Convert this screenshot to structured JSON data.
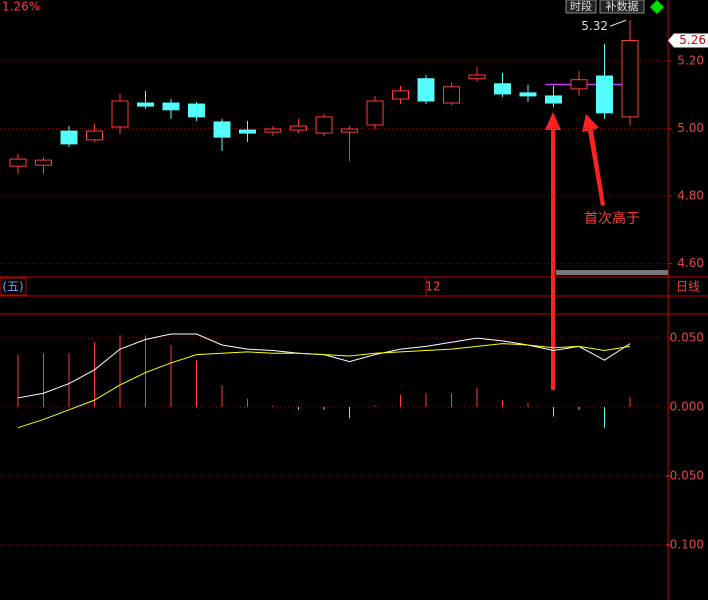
{
  "header": {
    "change": "1.26%",
    "buttons": [
      "时段",
      "补数据"
    ]
  },
  "toolbar": {
    "index": "(五)",
    "period": "日线"
  },
  "chart_data": [
    {
      "type": "candlestick",
      "categories": [
        null,
        null,
        null,
        null,
        null,
        null,
        null,
        null,
        null,
        null,
        null,
        null,
        null,
        null,
        null,
        null,
        "12",
        null,
        null,
        null,
        null,
        null,
        null,
        null,
        null
      ],
      "open": [
        4.888,
        4.891,
        4.992,
        4.966,
        5.004,
        5.075,
        5.075,
        5.072,
        5.019,
        4.995,
        4.989,
        4.995,
        4.986,
        4.989,
        5.01,
        5.087,
        5.147,
        5.075,
        5.147,
        5.132,
        5.105,
        5.096,
        5.117,
        5.155,
        5.034
      ],
      "high": [
        4.924,
        4.915,
        5.007,
        5.013,
        5.102,
        5.111,
        5.087,
        5.078,
        5.028,
        5.022,
        5.007,
        5.028,
        5.043,
        5.007,
        5.096,
        5.126,
        5.158,
        5.135,
        5.182,
        5.164,
        5.129,
        5.126,
        5.17,
        5.25,
        5.32
      ],
      "low": [
        4.865,
        4.865,
        4.945,
        4.96,
        4.983,
        5.058,
        5.028,
        5.022,
        4.933,
        4.96,
        4.977,
        4.986,
        4.977,
        4.903,
        4.998,
        5.072,
        5.072,
        5.069,
        5.138,
        5.093,
        5.078,
        5.063,
        5.096,
        5.028,
        5.007
      ],
      "close": [
        4.909,
        4.906,
        4.954,
        4.992,
        5.081,
        5.066,
        5.055,
        5.034,
        4.974,
        4.986,
        4.998,
        5.007,
        5.034,
        4.998,
        5.081,
        5.111,
        5.081,
        5.123,
        5.158,
        5.102,
        5.096,
        5.075,
        5.144,
        5.046,
        5.26
      ],
      "up_color": "#ff3b3b",
      "down_color": "#54fcfc",
      "ylim": [
        4.56,
        5.38
      ],
      "yticks": [
        {
          "value": 5.2,
          "label": "5.20"
        },
        {
          "value": 5.0,
          "label": "5.00"
        },
        {
          "value": 4.8,
          "label": "4.80"
        },
        {
          "value": 4.6,
          "label": "4.60"
        }
      ],
      "grid": true,
      "high_label": 5.32,
      "last_price": 5.26,
      "level": {
        "value": 5.13,
        "color": "#c040ff"
      },
      "annotation": "首次高于"
    },
    {
      "type": "macd",
      "bars": {
        "values": [
          0.038,
          0.039,
          0.039,
          0.047,
          0.052,
          0.052,
          0.045,
          0.034,
          0.016,
          0.006,
          0.001,
          -0.002,
          -0.002,
          -0.008,
          0.001,
          0.009,
          0.01,
          0.01,
          0.014,
          0.005,
          0.003,
          -0.007,
          -0.002,
          -0.015,
          0.007
        ],
        "up_color": "#ff3b3b",
        "down_color": "#54fcfc"
      },
      "series": [
        {
          "color": "#ffffff",
          "values": [
            0.0066,
            0.01,
            0.017,
            0.027,
            0.042,
            0.049,
            0.053,
            0.053,
            0.045,
            0.042,
            0.041,
            0.039,
            0.038,
            0.033,
            0.038,
            0.042,
            0.044,
            0.047,
            0.05,
            0.048,
            0.045,
            0.041,
            0.044,
            0.034,
            0.046
          ]
        },
        {
          "color": "#ffff00",
          "values": [
            -0.015,
            -0.009,
            -0.002,
            0.005,
            0.016,
            0.025,
            0.032,
            0.038,
            0.039,
            0.04,
            0.039,
            0.039,
            0.038,
            0.037,
            0.039,
            0.04,
            0.041,
            0.042,
            0.044,
            0.046,
            0.045,
            0.043,
            0.044,
            0.041,
            0.044
          ]
        }
      ],
      "ylim": [
        -0.14,
        0.0675
      ],
      "yticks": [
        {
          "value": 0.05,
          "label": "0.050"
        },
        {
          "value": 0,
          "label": "0.000"
        },
        {
          "value": -0.05,
          "label": "-0.050"
        },
        {
          "value": -0.1,
          "label": "-0.100"
        }
      ],
      "grid": true
    }
  ]
}
